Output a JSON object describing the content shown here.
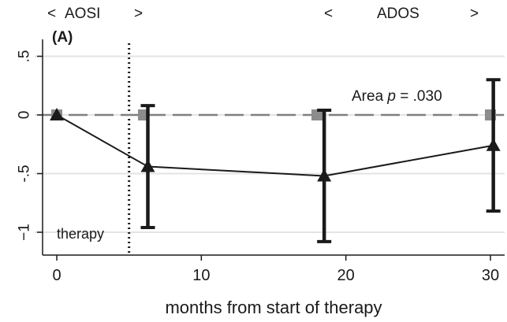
{
  "chart_data": {
    "type": "line",
    "panel_label": "(A)",
    "top_labels": [
      {
        "lt": "<",
        "text": "AOSI",
        "gt": ">"
      },
      {
        "lt": "<",
        "text": "ADOS",
        "gt": ">"
      }
    ],
    "xlabel": "months from start of therapy",
    "ylabel": "",
    "xlim": [
      -1.5,
      31.5
    ],
    "ylim": [
      -1.25,
      0.65
    ],
    "x_ticks": [
      0,
      10,
      20,
      30
    ],
    "y_ticks": [
      0.5,
      0,
      -0.5,
      -1
    ],
    "y_tick_labels": [
      ".5",
      "0",
      "-.5",
      "−1"
    ],
    "grid": true,
    "reference_line": {
      "y": 0,
      "style": "dashed",
      "color": "#7f7f7f"
    },
    "therapy_line": {
      "x": 5,
      "label": "therapy"
    },
    "annotation": {
      "prefix": "Area ",
      "italic": "p",
      "suffix": " = .030"
    },
    "series": [
      {
        "marker": "triangle",
        "color": "#1a1a1a",
        "x": [
          0,
          6.3,
          18.5,
          30.2
        ],
        "y": [
          0,
          -0.44,
          -0.52,
          -0.26
        ],
        "err_low": [
          null,
          -0.96,
          -1.08,
          -0.82
        ],
        "err_high": [
          null,
          0.08,
          0.04,
          0.3
        ]
      },
      {
        "marker": "square",
        "color": "#8c8c8c",
        "x": [
          0,
          6,
          18,
          30
        ],
        "y": [
          0,
          0,
          0,
          0
        ]
      }
    ],
    "colors": {
      "grid": "#e3e3e3",
      "axis": "#1a1a1a"
    }
  }
}
